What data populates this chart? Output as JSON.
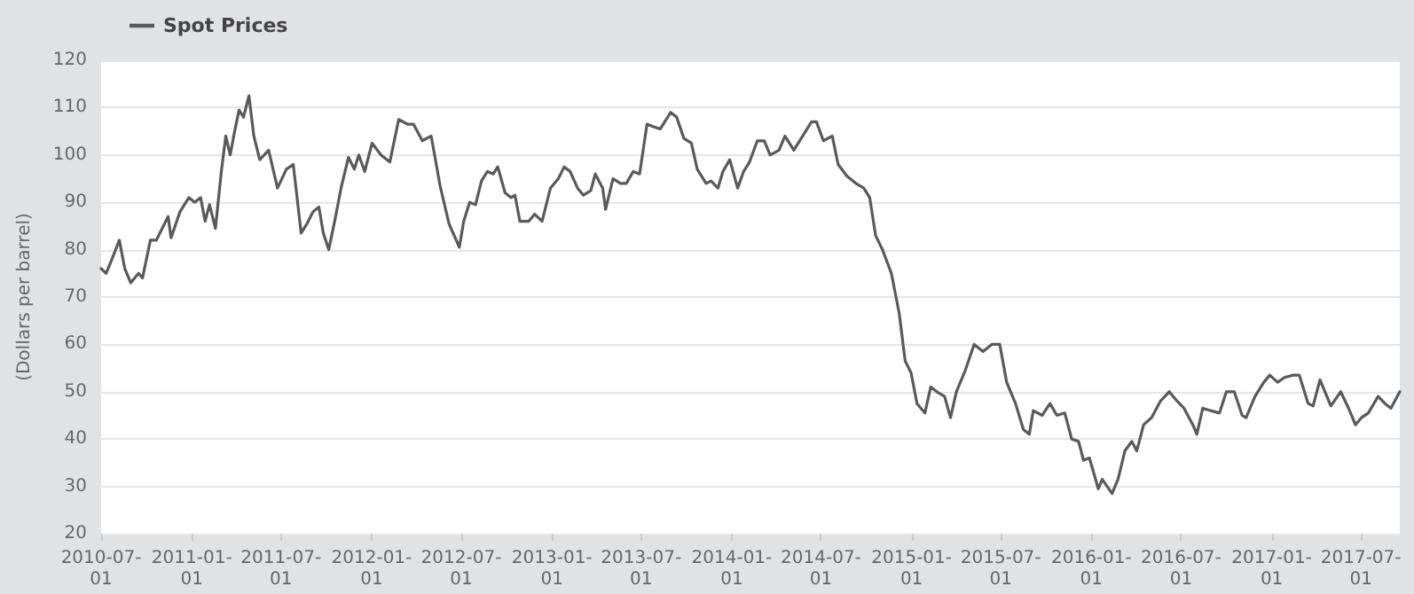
{
  "chart_data": {
    "type": "line",
    "ylabel": "(Dollars per barrel)",
    "legend": "top left",
    "grid": "y",
    "marker": "none",
    "line_style": "solid",
    "xlim": [
      "2010-07-01",
      "2017-09-18"
    ],
    "ylim": [
      20,
      120
    ],
    "yticks": [
      20,
      30,
      40,
      50,
      60,
      70,
      80,
      90,
      100,
      110,
      120
    ],
    "xticks": [
      "2010-07-01",
      "2011-01-01",
      "2011-07-01",
      "2012-01-01",
      "2012-07-01",
      "2013-01-01",
      "2013-07-01",
      "2014-01-01",
      "2014-07-01",
      "2015-01-01",
      "2015-07-01",
      "2016-01-01",
      "2016-07-01",
      "2017-01-01",
      "2017-07-01"
    ],
    "x": [
      "2010-07-01",
      "2010-07-11",
      "2010-07-23",
      "2010-08-07",
      "2010-08-18",
      "2010-08-30",
      "2010-09-15",
      "2010-09-23",
      "2010-10-09",
      "2010-10-21",
      "2010-11-14",
      "2010-11-20",
      "2010-12-08",
      "2010-12-26",
      "2011-01-07",
      "2011-01-19",
      "2011-01-28",
      "2011-02-06",
      "2011-02-18",
      "2011-03-02",
      "2011-03-11",
      "2011-03-20",
      "2011-03-29",
      "2011-04-07",
      "2011-04-16",
      "2011-04-27",
      "2011-05-07",
      "2011-05-19",
      "2011-06-06",
      "2011-06-24",
      "2011-07-12",
      "2011-07-26",
      "2011-08-11",
      "2011-08-23",
      "2011-09-04",
      "2011-09-16",
      "2011-09-25",
      "2011-10-06",
      "2011-10-18",
      "2011-10-31",
      "2011-11-15",
      "2011-11-27",
      "2011-12-06",
      "2011-12-18",
      "2012-01-02",
      "2012-01-20",
      "2012-02-07",
      "2012-02-25",
      "2012-03-14",
      "2012-03-26",
      "2012-04-13",
      "2012-05-01",
      "2012-05-19",
      "2012-06-06",
      "2012-06-27",
      "2012-07-06",
      "2012-07-18",
      "2012-07-30",
      "2012-08-11",
      "2012-08-23",
      "2012-09-04",
      "2012-09-13",
      "2012-09-28",
      "2012-10-10",
      "2012-10-18",
      "2012-10-28",
      "2012-11-15",
      "2012-11-27",
      "2012-12-12",
      "2012-12-29",
      "2013-01-14",
      "2013-01-26",
      "2013-02-07",
      "2013-02-22",
      "2013-03-06",
      "2013-03-21",
      "2013-03-30",
      "2013-04-14",
      "2013-04-20",
      "2013-05-05",
      "2013-05-20",
      "2013-06-01",
      "2013-06-15",
      "2013-06-28",
      "2013-07-13",
      "2013-07-25",
      "2013-08-09",
      "2013-08-18",
      "2013-08-30",
      "2013-09-11",
      "2013-09-26",
      "2013-10-11",
      "2013-10-23",
      "2013-11-10",
      "2013-11-20",
      "2013-12-04",
      "2013-12-14",
      "2013-12-28",
      "2014-01-13",
      "2014-01-25",
      "2014-02-06",
      "2014-02-22",
      "2014-03-08",
      "2014-03-20",
      "2014-04-07",
      "2014-04-19",
      "2014-05-07",
      "2014-05-25",
      "2014-06-12",
      "2014-06-22",
      "2014-07-06",
      "2014-07-24",
      "2014-08-05",
      "2014-08-23",
      "2014-09-10",
      "2014-09-26",
      "2014-10-08",
      "2014-10-20",
      "2014-11-03",
      "2014-11-21",
      "2014-12-07",
      "2014-12-19",
      "2014-12-31",
      "2015-01-12",
      "2015-01-28",
      "2015-02-09",
      "2015-02-21",
      "2015-03-09",
      "2015-03-21",
      "2015-04-02",
      "2015-04-20",
      "2015-05-08",
      "2015-05-26",
      "2015-06-13",
      "2015-06-29",
      "2015-07-13",
      "2015-07-31",
      "2015-08-16",
      "2015-08-28",
      "2015-09-05",
      "2015-09-23",
      "2015-10-09",
      "2015-10-23",
      "2015-11-08",
      "2015-11-22",
      "2015-12-06",
      "2015-12-16",
      "2015-12-28",
      "2016-01-15",
      "2016-01-23",
      "2016-02-02",
      "2016-02-12",
      "2016-02-24",
      "2016-03-09",
      "2016-03-23",
      "2016-04-02",
      "2016-04-16",
      "2016-05-02",
      "2016-05-20",
      "2016-06-07",
      "2016-06-23",
      "2016-07-07",
      "2016-07-25",
      "2016-08-02",
      "2016-08-14",
      "2016-08-30",
      "2016-09-17",
      "2016-10-01",
      "2016-10-17",
      "2016-11-02",
      "2016-11-10",
      "2016-11-28",
      "2016-12-16",
      "2016-12-28",
      "2017-01-13",
      "2017-01-27",
      "2017-02-14",
      "2017-02-26",
      "2017-03-16",
      "2017-03-26",
      "2017-04-09",
      "2017-05-01",
      "2017-05-21",
      "2017-06-06",
      "2017-06-20",
      "2017-07-02",
      "2017-07-16",
      "2017-08-05",
      "2017-08-19",
      "2017-08-31",
      "2017-09-18"
    ],
    "series": [
      {
        "name": "Spot Prices",
        "color": "#5a5a5a",
        "values": [
          76,
          75,
          78,
          82,
          76,
          73,
          75,
          74,
          82,
          82,
          87,
          82.5,
          88,
          91,
          90,
          91,
          86,
          89.5,
          84.5,
          96.5,
          104,
          100,
          105,
          109.5,
          108,
          112.5,
          104,
          99,
          101,
          93,
          97,
          98,
          83.5,
          85.5,
          88,
          89,
          83.5,
          80,
          86,
          93,
          99.5,
          97,
          100,
          96.5,
          102.5,
          100,
          98.5,
          107.5,
          106.5,
          106.5,
          103,
          104,
          93.5,
          85.5,
          80.5,
          86,
          90,
          89.5,
          94.5,
          96.5,
          96,
          97.5,
          92,
          91,
          91.5,
          86,
          86,
          87.5,
          86,
          93,
          95,
          97.5,
          96.5,
          93,
          91.5,
          92.5,
          96,
          93,
          88.5,
          95,
          94,
          94,
          96.5,
          96,
          106.5,
          106,
          105.5,
          107,
          109,
          108,
          103.5,
          102.5,
          97,
          94,
          94.5,
          93,
          96.5,
          99,
          93,
          96.5,
          98.5,
          103,
          103,
          100,
          101,
          104,
          101,
          104,
          107,
          107,
          103,
          104,
          98,
          95.5,
          94,
          93,
          91,
          83,
          80,
          75,
          66.5,
          56.5,
          54,
          47.5,
          45.5,
          51,
          50,
          49,
          44.5,
          50,
          54.5,
          60,
          58.5,
          60,
          60,
          52,
          47.5,
          42,
          41,
          46,
          45,
          47.5,
          45,
          45.5,
          40,
          39.5,
          35.5,
          36,
          29.5,
          31.5,
          30,
          28.5,
          31.5,
          37.5,
          39.5,
          37.5,
          43,
          44.5,
          48,
          50,
          48,
          46.5,
          43,
          41,
          46.5,
          46,
          45.5,
          50,
          50,
          45,
          44.5,
          49,
          52,
          53.5,
          52,
          53,
          53.5,
          53.5,
          47.5,
          47,
          52.5,
          47,
          50,
          46.5,
          43,
          44.5,
          45.5,
          49,
          47.5,
          46.5,
          50
        ]
      }
    ]
  }
}
